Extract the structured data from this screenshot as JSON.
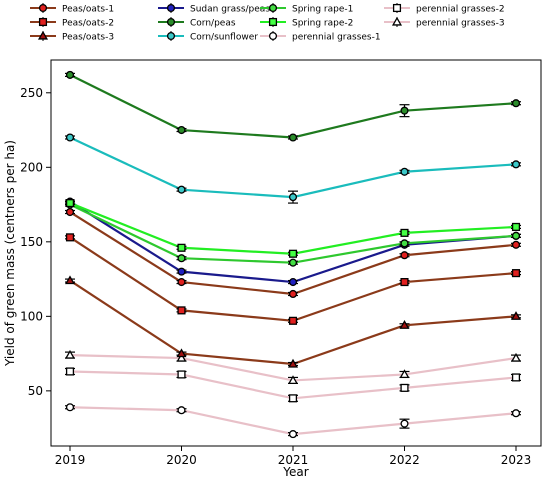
{
  "chart_data": {
    "type": "line",
    "title": "",
    "xlabel": "Year",
    "ylabel": "Yield of green mass (centners per ha)",
    "x": [
      2019,
      2020,
      2021,
      2022,
      2023
    ],
    "xticks": [
      "2019",
      "2020",
      "2021",
      "2022",
      "2023"
    ],
    "yticks": [
      "50",
      "100",
      "150",
      "200",
      "250"
    ],
    "ylim": [
      13,
      272
    ],
    "grid": false,
    "legend_position": "top",
    "series": [
      {
        "name": "Peas/oats-1",
        "values": [
          170,
          123,
          115,
          141,
          148
        ],
        "err": [
          1,
          1,
          1,
          1,
          1
        ],
        "color": "#8b3a1a",
        "marker_face": "#e0201f",
        "marker": "circle"
      },
      {
        "name": "Peas/oats-2",
        "values": [
          153,
          104,
          97,
          123,
          129
        ],
        "err": [
          1,
          1,
          1,
          1,
          1
        ],
        "color": "#8b3a1a",
        "marker_face": "#e0201f",
        "marker": "square"
      },
      {
        "name": "Peas/oats-3",
        "values": [
          124,
          75,
          68,
          94,
          100
        ],
        "err": [
          1,
          1,
          1,
          1,
          1
        ],
        "color": "#8b3a1a",
        "marker_face": "#a01010",
        "marker": "triangle"
      },
      {
        "name": "Sudan grass/peas",
        "values": [
          177,
          130,
          123,
          148,
          154
        ],
        "err": [
          1,
          1,
          1,
          1,
          1
        ],
        "color": "#1a1a8c",
        "marker_face": "#2020c0",
        "marker": "circle"
      },
      {
        "name": "Corn/peas",
        "values": [
          262,
          225,
          220,
          238,
          243
        ],
        "err": [
          1,
          1,
          1,
          4,
          1
        ],
        "color": "#1e7a1e",
        "marker_face": "#2a8c2a",
        "marker": "circle"
      },
      {
        "name": "Corn/sunflower",
        "values": [
          220,
          185,
          180,
          197,
          202
        ],
        "err": [
          1,
          1,
          4,
          1,
          1
        ],
        "color": "#1abcbc",
        "marker_face": "#3cc8c8",
        "marker": "circle"
      },
      {
        "name": "Spring rape-1",
        "values": [
          175,
          139,
          136,
          149,
          154
        ],
        "err": [
          1,
          1,
          1,
          1,
          1
        ],
        "color": "#2ec82e",
        "marker_face": "#44dd44",
        "marker": "circle"
      },
      {
        "name": "Spring rape-2",
        "values": [
          176,
          146,
          142,
          156,
          160
        ],
        "err": [
          1,
          1,
          1,
          1,
          1
        ],
        "color": "#22ee22",
        "marker_face": "#44ff44",
        "marker": "square"
      },
      {
        "name": "perennial grasses-1",
        "values": [
          39,
          37,
          21,
          28,
          35
        ],
        "err": [
          1,
          1,
          1,
          3,
          1
        ],
        "color": "#e8c0c8",
        "marker_face": "#ffffff",
        "marker": "circle"
      },
      {
        "name": "perennial grasses-2",
        "values": [
          63,
          61,
          45,
          52,
          59
        ],
        "err": [
          2,
          2,
          2,
          2,
          2
        ],
        "color": "#e8c0c8",
        "marker_face": "#ffffff",
        "marker": "square"
      },
      {
        "name": "perennial grasses-3",
        "values": [
          74,
          72,
          57,
          61,
          72
        ],
        "err": [
          2,
          2,
          2,
          2,
          2
        ],
        "color": "#e8c0c8",
        "marker_face": "#ffffff",
        "marker": "triangle"
      }
    ]
  }
}
